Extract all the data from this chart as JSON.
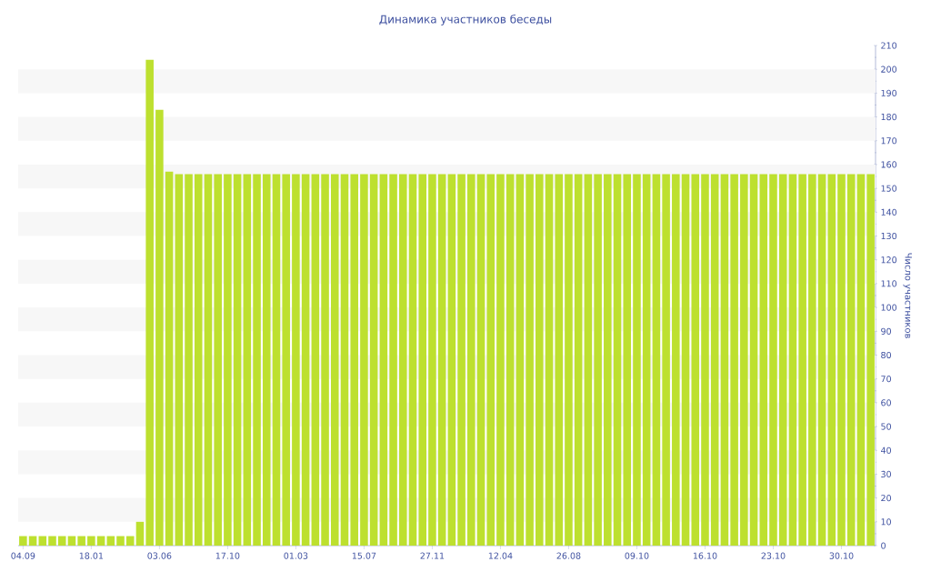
{
  "chart_data": {
    "type": "bar",
    "title": "Динамика участников беседы",
    "ylabel": "Число участников",
    "categories": [
      "04.09",
      null,
      null,
      null,
      null,
      null,
      null,
      "18.01",
      null,
      null,
      null,
      null,
      null,
      null,
      "03.06",
      null,
      null,
      null,
      null,
      null,
      null,
      "17.10",
      null,
      null,
      null,
      null,
      null,
      null,
      "01.03",
      null,
      null,
      null,
      null,
      null,
      null,
      "15.07",
      null,
      null,
      null,
      null,
      null,
      null,
      "27.11",
      null,
      null,
      null,
      null,
      null,
      null,
      "12.04",
      null,
      null,
      null,
      null,
      null,
      null,
      "26.08",
      null,
      null,
      null,
      null,
      null,
      null,
      "09.10",
      null,
      null,
      null,
      null,
      null,
      null,
      "16.10",
      null,
      null,
      null,
      null,
      null,
      null,
      "23.10",
      null,
      null,
      null,
      null,
      null,
      null,
      "30.10",
      null,
      null,
      null
    ],
    "values": [
      4,
      4,
      4,
      4,
      4,
      4,
      4,
      4,
      4,
      4,
      4,
      4,
      10,
      204,
      183,
      157,
      156,
      156,
      156,
      156,
      156,
      156,
      156,
      156,
      156,
      156,
      156,
      156,
      156,
      156,
      156,
      156,
      156,
      156,
      156,
      156,
      156,
      156,
      156,
      156,
      156,
      156,
      156,
      156,
      156,
      156,
      156,
      156,
      156,
      156,
      156,
      156,
      156,
      156,
      156,
      156,
      156,
      156,
      156,
      156,
      156,
      156,
      156,
      156,
      156,
      156,
      156,
      156,
      156,
      156,
      156,
      156,
      156,
      156,
      156,
      156,
      156,
      156,
      156,
      156,
      156,
      156,
      156,
      156,
      156,
      156,
      156,
      156
    ],
    "color": "#bde02f",
    "ylim": [
      0,
      210
    ],
    "yticks": [
      0,
      10,
      20,
      30,
      40,
      50,
      60,
      70,
      80,
      90,
      100,
      110,
      120,
      130,
      140,
      150,
      160,
      170,
      180,
      190,
      200,
      210
    ],
    "bands": [
      {
        "axis": "y",
        "from": 10,
        "to": 20,
        "color": "#f7f7f7"
      },
      {
        "axis": "y",
        "from": 30,
        "to": 40,
        "color": "#f7f7f7"
      },
      {
        "axis": "y",
        "from": 50,
        "to": 60,
        "color": "#f7f7f7"
      },
      {
        "axis": "y",
        "from": 70,
        "to": 80,
        "color": "#f7f7f7"
      },
      {
        "axis": "y",
        "from": 90,
        "to": 100,
        "color": "#f7f7f7"
      },
      {
        "axis": "y",
        "from": 110,
        "to": 120,
        "color": "#f7f7f7"
      },
      {
        "axis": "y",
        "from": 130,
        "to": 140,
        "color": "#f7f7f7"
      },
      {
        "axis": "y",
        "from": 150,
        "to": 160,
        "color": "#f7f7f7"
      },
      {
        "axis": "y",
        "from": 170,
        "to": 180,
        "color": "#f7f7f7"
      },
      {
        "axis": "y",
        "from": 190,
        "to": 200,
        "color": "#f7f7f7"
      }
    ]
  }
}
